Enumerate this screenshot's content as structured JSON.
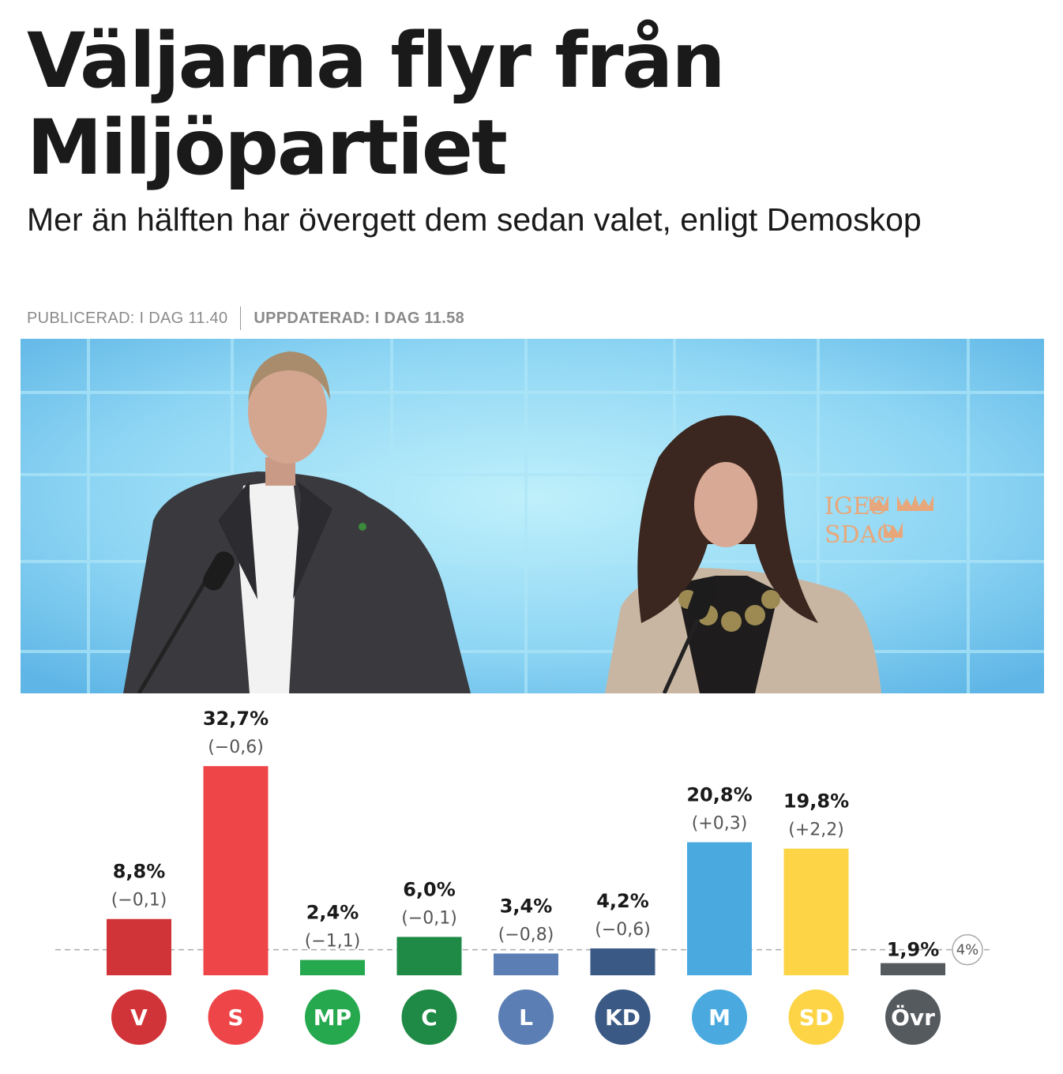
{
  "article": {
    "headline": "Väljarna flyr från Miljöpartiet",
    "subtitle": "Mer än hälften har övergett dem sedan valet, enligt Demoskop",
    "published": "PUBLICERAD: I DAG 11.40",
    "updated": "UPPDATERAD: I DAG 11.58"
  },
  "photo": {
    "backdrop_text_line1": "IGES",
    "backdrop_text_line2": "SDAG"
  },
  "chart_data": {
    "type": "bar",
    "categories": [
      "V",
      "S",
      "MP",
      "C",
      "L",
      "KD",
      "M",
      "SD",
      "Övr"
    ],
    "values": [
      8.8,
      32.7,
      2.4,
      6.0,
      3.4,
      4.2,
      20.8,
      19.8,
      1.9
    ],
    "value_labels": [
      "8,8%",
      "32,7%",
      "2,4%",
      "6,0%",
      "3,4%",
      "4,2%",
      "20,8%",
      "19,8%",
      "1,9%"
    ],
    "change_labels": [
      "(−0,1)",
      "(−0,6)",
      "(−1,1)",
      "(−0,1)",
      "(−0,8)",
      "(−0,6)",
      "(+0,3)",
      "(+2,2)",
      ""
    ],
    "colors": [
      "#d13438",
      "#ee4549",
      "#25a84e",
      "#1e8a45",
      "#5b7fb4",
      "#3a5a85",
      "#4aaae0",
      "#fcd445",
      "#555a5f"
    ],
    "threshold": 4,
    "threshold_label": "4%",
    "title": "",
    "xlabel": "",
    "ylabel": "",
    "grid": false
  }
}
